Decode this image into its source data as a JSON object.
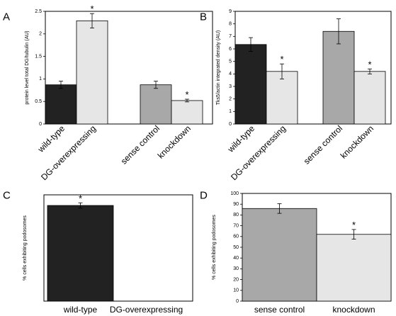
{
  "chart_data": [
    {
      "panel": "A",
      "type": "bar",
      "ylabel": "protein level total DG/tubulin (AU)",
      "ylim": [
        0,
        2.5
      ],
      "yticks": [
        0,
        0.5,
        1,
        1.5,
        2,
        2.5
      ],
      "yticklabels": [
        "0",
        "0.5",
        "1",
        "1.5",
        "2",
        "2.5"
      ],
      "grid": false,
      "categories": [
        "wild-type",
        "DG-overexpressing",
        "sense control",
        "knockdown"
      ],
      "values": [
        0.87,
        2.29,
        0.87,
        0.52
      ],
      "errors": [
        0.08,
        0.16,
        0.08,
        0.03
      ],
      "significant": [
        false,
        true,
        false,
        true
      ],
      "colors": [
        "#222222",
        "#e6e6e6",
        "#a8a8a8",
        "#e6e6e6"
      ]
    },
    {
      "panel": "B",
      "type": "bar",
      "ylabel": "Tks5/actin integrated density (AU)",
      "ylim": [
        0,
        9
      ],
      "yticks": [
        0,
        1,
        2,
        3,
        4,
        5,
        6,
        7,
        8,
        9
      ],
      "yticklabels": [
        "0",
        "1",
        "2",
        "3",
        "4",
        "5",
        "6",
        "7",
        "8",
        "9"
      ],
      "grid": false,
      "categories": [
        "wild-type",
        "DG-overexpressing",
        "sense control",
        "knockdown"
      ],
      "values": [
        6.35,
        4.2,
        7.4,
        4.2
      ],
      "errors": [
        0.55,
        0.6,
        1.0,
        0.2
      ],
      "significant": [
        false,
        true,
        false,
        true
      ],
      "colors": [
        "#222222",
        "#e6e6e6",
        "#a8a8a8",
        "#e6e6e6"
      ]
    },
    {
      "panel": "C",
      "type": "bar",
      "ylabel": "% cells exhibiting podosomes",
      "ylim": [
        0,
        80
      ],
      "yticks": [],
      "yticklabels": [],
      "grid": false,
      "categories": [
        "wild-type",
        "DG-overexpressing"
      ],
      "values": [
        72,
        0
      ],
      "errors": [
        2,
        0
      ],
      "significant": [
        true,
        false
      ],
      "colors": [
        "#222222",
        "#e6e6e6"
      ]
    },
    {
      "panel": "D",
      "type": "bar",
      "ylabel": "% cells exhibiting podosomes",
      "ylim": [
        0,
        100
      ],
      "yticks": [
        0,
        10,
        20,
        30,
        40,
        50,
        60,
        70,
        80,
        90,
        100
      ],
      "yticklabels": [
        "0",
        "10",
        "20",
        "30",
        "40",
        "50",
        "60",
        "70",
        "80",
        "90",
        "100"
      ],
      "grid": false,
      "categories": [
        "sense control",
        "knockdown"
      ],
      "values": [
        86,
        62
      ],
      "errors": [
        4.5,
        4.5
      ],
      "significant": [
        false,
        true
      ],
      "colors": [
        "#a8a8a8",
        "#e6e6e6"
      ]
    }
  ],
  "labels": {
    "star": "*"
  }
}
